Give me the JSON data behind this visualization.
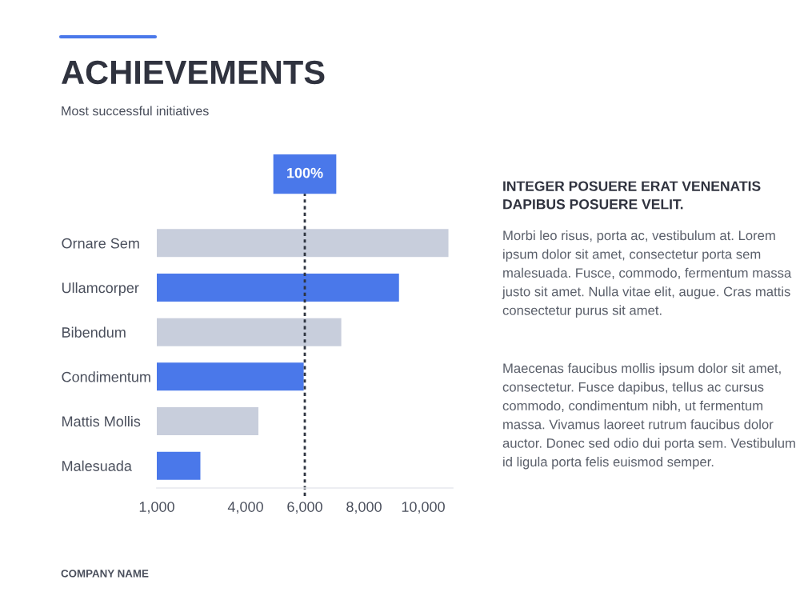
{
  "chart_data": {
    "type": "bar",
    "orientation": "horizontal",
    "title": "ACHIEVEMENTS",
    "subtitle": "Most successful initiatives",
    "categories": [
      "Ornare Sem",
      "Ullamcorper",
      "Bibendum",
      "Condimentum",
      "Mattis Mollis",
      "Malesuada"
    ],
    "values": [
      10890,
      9220,
      7270,
      6000,
      4470,
      2510
    ],
    "colors": [
      "#c8cedc",
      "#4a78ea",
      "#c8cedc",
      "#4a78ea",
      "#c8cedc",
      "#4a78ea"
    ],
    "xlim": [
      1000,
      11000
    ],
    "xticks": [
      {
        "value": 1000,
        "label": "1,000"
      },
      {
        "value": 4000,
        "label": "4,000"
      },
      {
        "value": 6000,
        "label": "6,000"
      },
      {
        "value": 8000,
        "label": "8,000"
      },
      {
        "value": 10000,
        "label": "10,000"
      }
    ],
    "ref_lines": [
      {
        "axis": "x",
        "value": 6000,
        "color": "#2e3440",
        "line_style": "dotted"
      }
    ],
    "grid": false,
    "annotations": [
      {
        "text": "100%",
        "x": 6000
      },
      "INTEGER POSUERE ERAT VENENATIS DAPIBUS POSUERE VELIT.",
      "Morbi leo risus, porta ac, vestibulum at. Lorem ipsum dolor sit amet, consectetur porta sem malesuada. Fusce, commodo, fermentum massa justo sit amet. Nulla vitae elit, augue. Cras mattis consectetur purus sit amet.",
      "Maecenas faucibus mollis ipsum dolor sit amet, consectetur. Fusce dapibus, tellus ac cursus commodo, condimentum nibh, ut fermentum massa. Vivamus laoreet rutrum faucibus dolor auctor. Donec sed odio dui porta sem. Vestibulum id ligula porta felis euismod semper.",
      "COMPANY NAME"
    ]
  }
}
